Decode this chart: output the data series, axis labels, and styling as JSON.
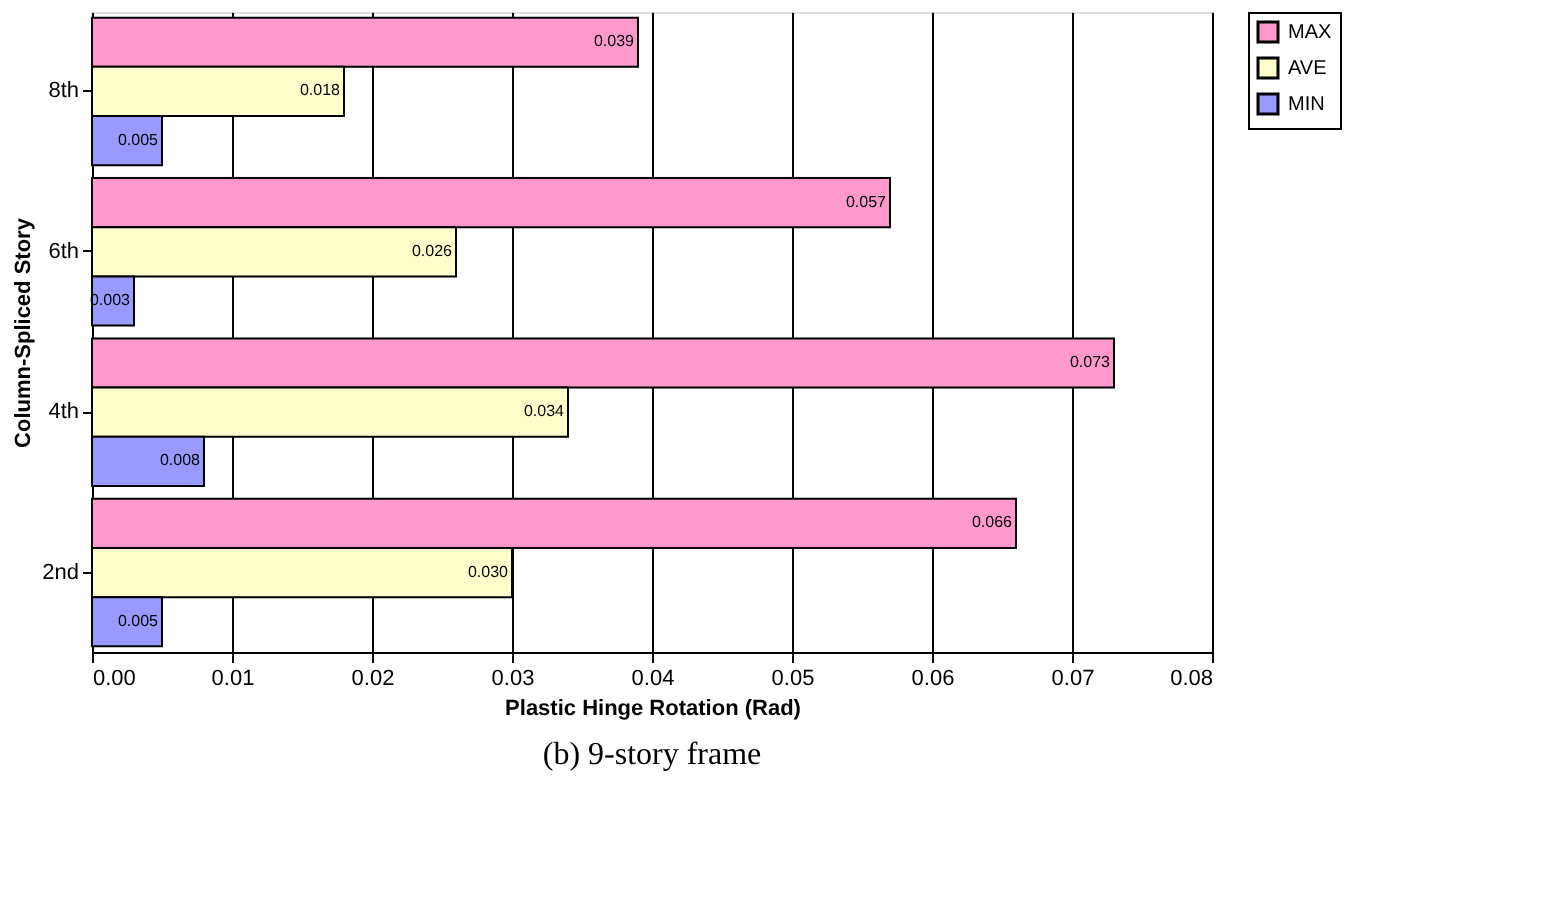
{
  "chart_data": {
    "type": "bar",
    "orientation": "horizontal",
    "xlabel": "Plastic Hinge Rotation (Rad)",
    "ylabel": "Column-Spliced Story",
    "categories": [
      "8th",
      "6th",
      "4th",
      "2nd"
    ],
    "series": [
      {
        "name": "MAX",
        "color": "#ff99cc",
        "values": [
          0.039,
          0.057,
          0.073,
          0.066
        ]
      },
      {
        "name": "AVE",
        "color": "#ffffcc",
        "values": [
          0.018,
          0.026,
          0.034,
          0.03
        ]
      },
      {
        "name": "MIN",
        "color": "#9999ff",
        "values": [
          0.005,
          0.003,
          0.008,
          0.005
        ]
      }
    ],
    "value_labels": [
      [
        "0.039",
        "0.057",
        "0.073",
        "0.066"
      ],
      [
        "0.018",
        "0.026",
        "0.034",
        "0.030"
      ],
      [
        "0.005",
        "0.003",
        "0.008",
        "0.005"
      ]
    ],
    "xlim": [
      0,
      0.08
    ],
    "xticks": [
      {
        "value": 0,
        "label": "0.00"
      },
      0.01,
      0.02,
      0.03,
      0.04,
      0.05,
      0.06,
      0.07,
      0.08
    ],
    "grid": "x",
    "legend": "right",
    "annotations": [
      "(b) 9-story frame"
    ]
  }
}
